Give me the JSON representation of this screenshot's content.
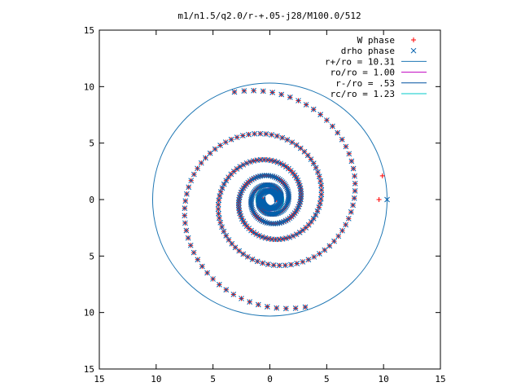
{
  "chart_data": {
    "type": "scatter",
    "title": "m1/n1.5/q2.0/r-+.05-j28/M100.0/512",
    "xlabel": "",
    "ylabel": "",
    "xlim": [
      -15,
      15
    ],
    "ylim": [
      -15,
      15
    ],
    "x_tick_values": [
      -15,
      -10,
      -5,
      0,
      5,
      10,
      15
    ],
    "x_tick_labels": [
      "15",
      "10",
      "5",
      "0",
      "5",
      "10",
      "15"
    ],
    "y_tick_values": [
      15,
      10,
      5,
      0,
      -5,
      -10,
      -15
    ],
    "y_tick_labels": [
      "15",
      "10",
      "5",
      "0",
      "5",
      "10",
      "15"
    ],
    "grid": false,
    "legend_position": "top-right",
    "series": [
      {
        "name": "W phase",
        "kind": "points",
        "marker": "plus",
        "color": "#ff0000",
        "spiral": {
          "a": 0.6,
          "b": 0.16,
          "theta_start": 0.0,
          "theta_end": 18.7,
          "arms": 1
        },
        "extra_points": [
          [
            9.9,
            2.1
          ],
          [
            9.6,
            0.0
          ]
        ]
      },
      {
        "name": "drho phase",
        "kind": "points",
        "marker": "cross",
        "color": "#0060ad",
        "spiral": {
          "a": 0.6,
          "b": 0.16,
          "theta_start": 0.0,
          "theta_end": 18.7,
          "arms": 1
        },
        "extra_points": [
          [
            10.31,
            0.0
          ]
        ]
      },
      {
        "name": "r+/ro = 10.31",
        "kind": "circle",
        "radius": 10.31,
        "color": "#1f77b4"
      },
      {
        "name": "ro/ro = 1.00",
        "kind": "circle",
        "radius": 1.0,
        "color": "#c000c0"
      },
      {
        "name": "r-/ro = .53",
        "kind": "circle",
        "radius": 0.53,
        "color": "#0050a0"
      },
      {
        "name": "rc/ro = 1.23",
        "kind": "circle",
        "radius": 1.23,
        "color": "#00c8c8"
      }
    ]
  }
}
